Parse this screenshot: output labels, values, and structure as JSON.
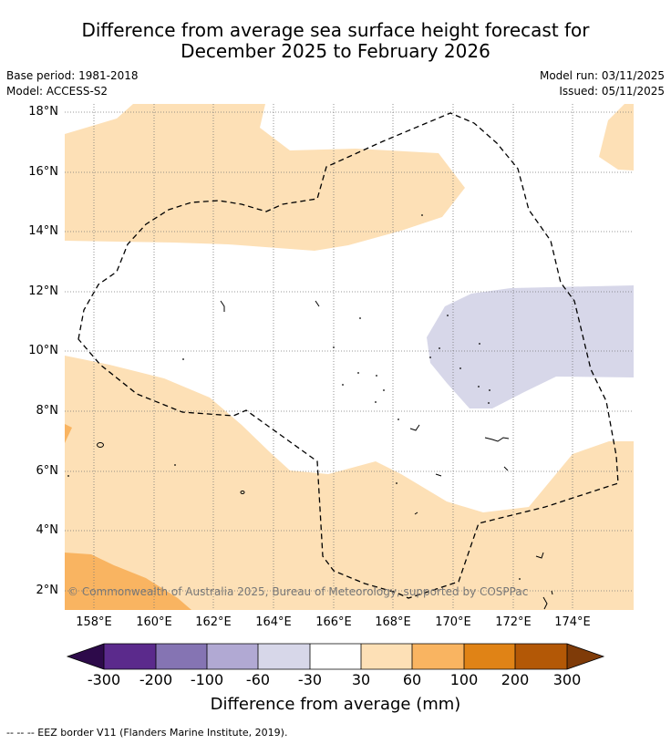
{
  "title": {
    "line1": "Difference from average sea surface height forecast for",
    "line2": "December 2025 to February 2026"
  },
  "meta": {
    "base_period": "Base period: 1981-2018",
    "model": "Model: ACCESS-S2",
    "model_run": "Model run: 03/11/2025",
    "issued": "Issued: 05/11/2025"
  },
  "map": {
    "lat_labels": [
      "18°N",
      "16°N",
      "14°N",
      "12°N",
      "10°N",
      "8°N",
      "6°N",
      "4°N",
      "2°N"
    ],
    "lon_labels": [
      "158°E",
      "160°E",
      "162°E",
      "164°E",
      "166°E",
      "168°E",
      "170°E",
      "172°E",
      "174°E"
    ],
    "copyright": "© Commonwealth of Australia 2025, Bureau of Meteorology, supported by COSPPac"
  },
  "colorbar": {
    "title": "Difference from average (mm)",
    "tick_labels": [
      "-300",
      "-200",
      "-100",
      "-60",
      "-30",
      "30",
      "60",
      "100",
      "200",
      "300"
    ],
    "colors": [
      "#2d0a4a",
      "#5b2a8c",
      "#8574b3",
      "#b1a9d3",
      "#d7d7e9",
      "#ffffff",
      "#fde0b6",
      "#f9b461",
      "#e08316",
      "#b35806",
      "#7f3b08"
    ]
  },
  "footer": {
    "eez_note": "--  --  -- EEZ border V11 (Flanders Marine Institute, 2019)."
  }
}
